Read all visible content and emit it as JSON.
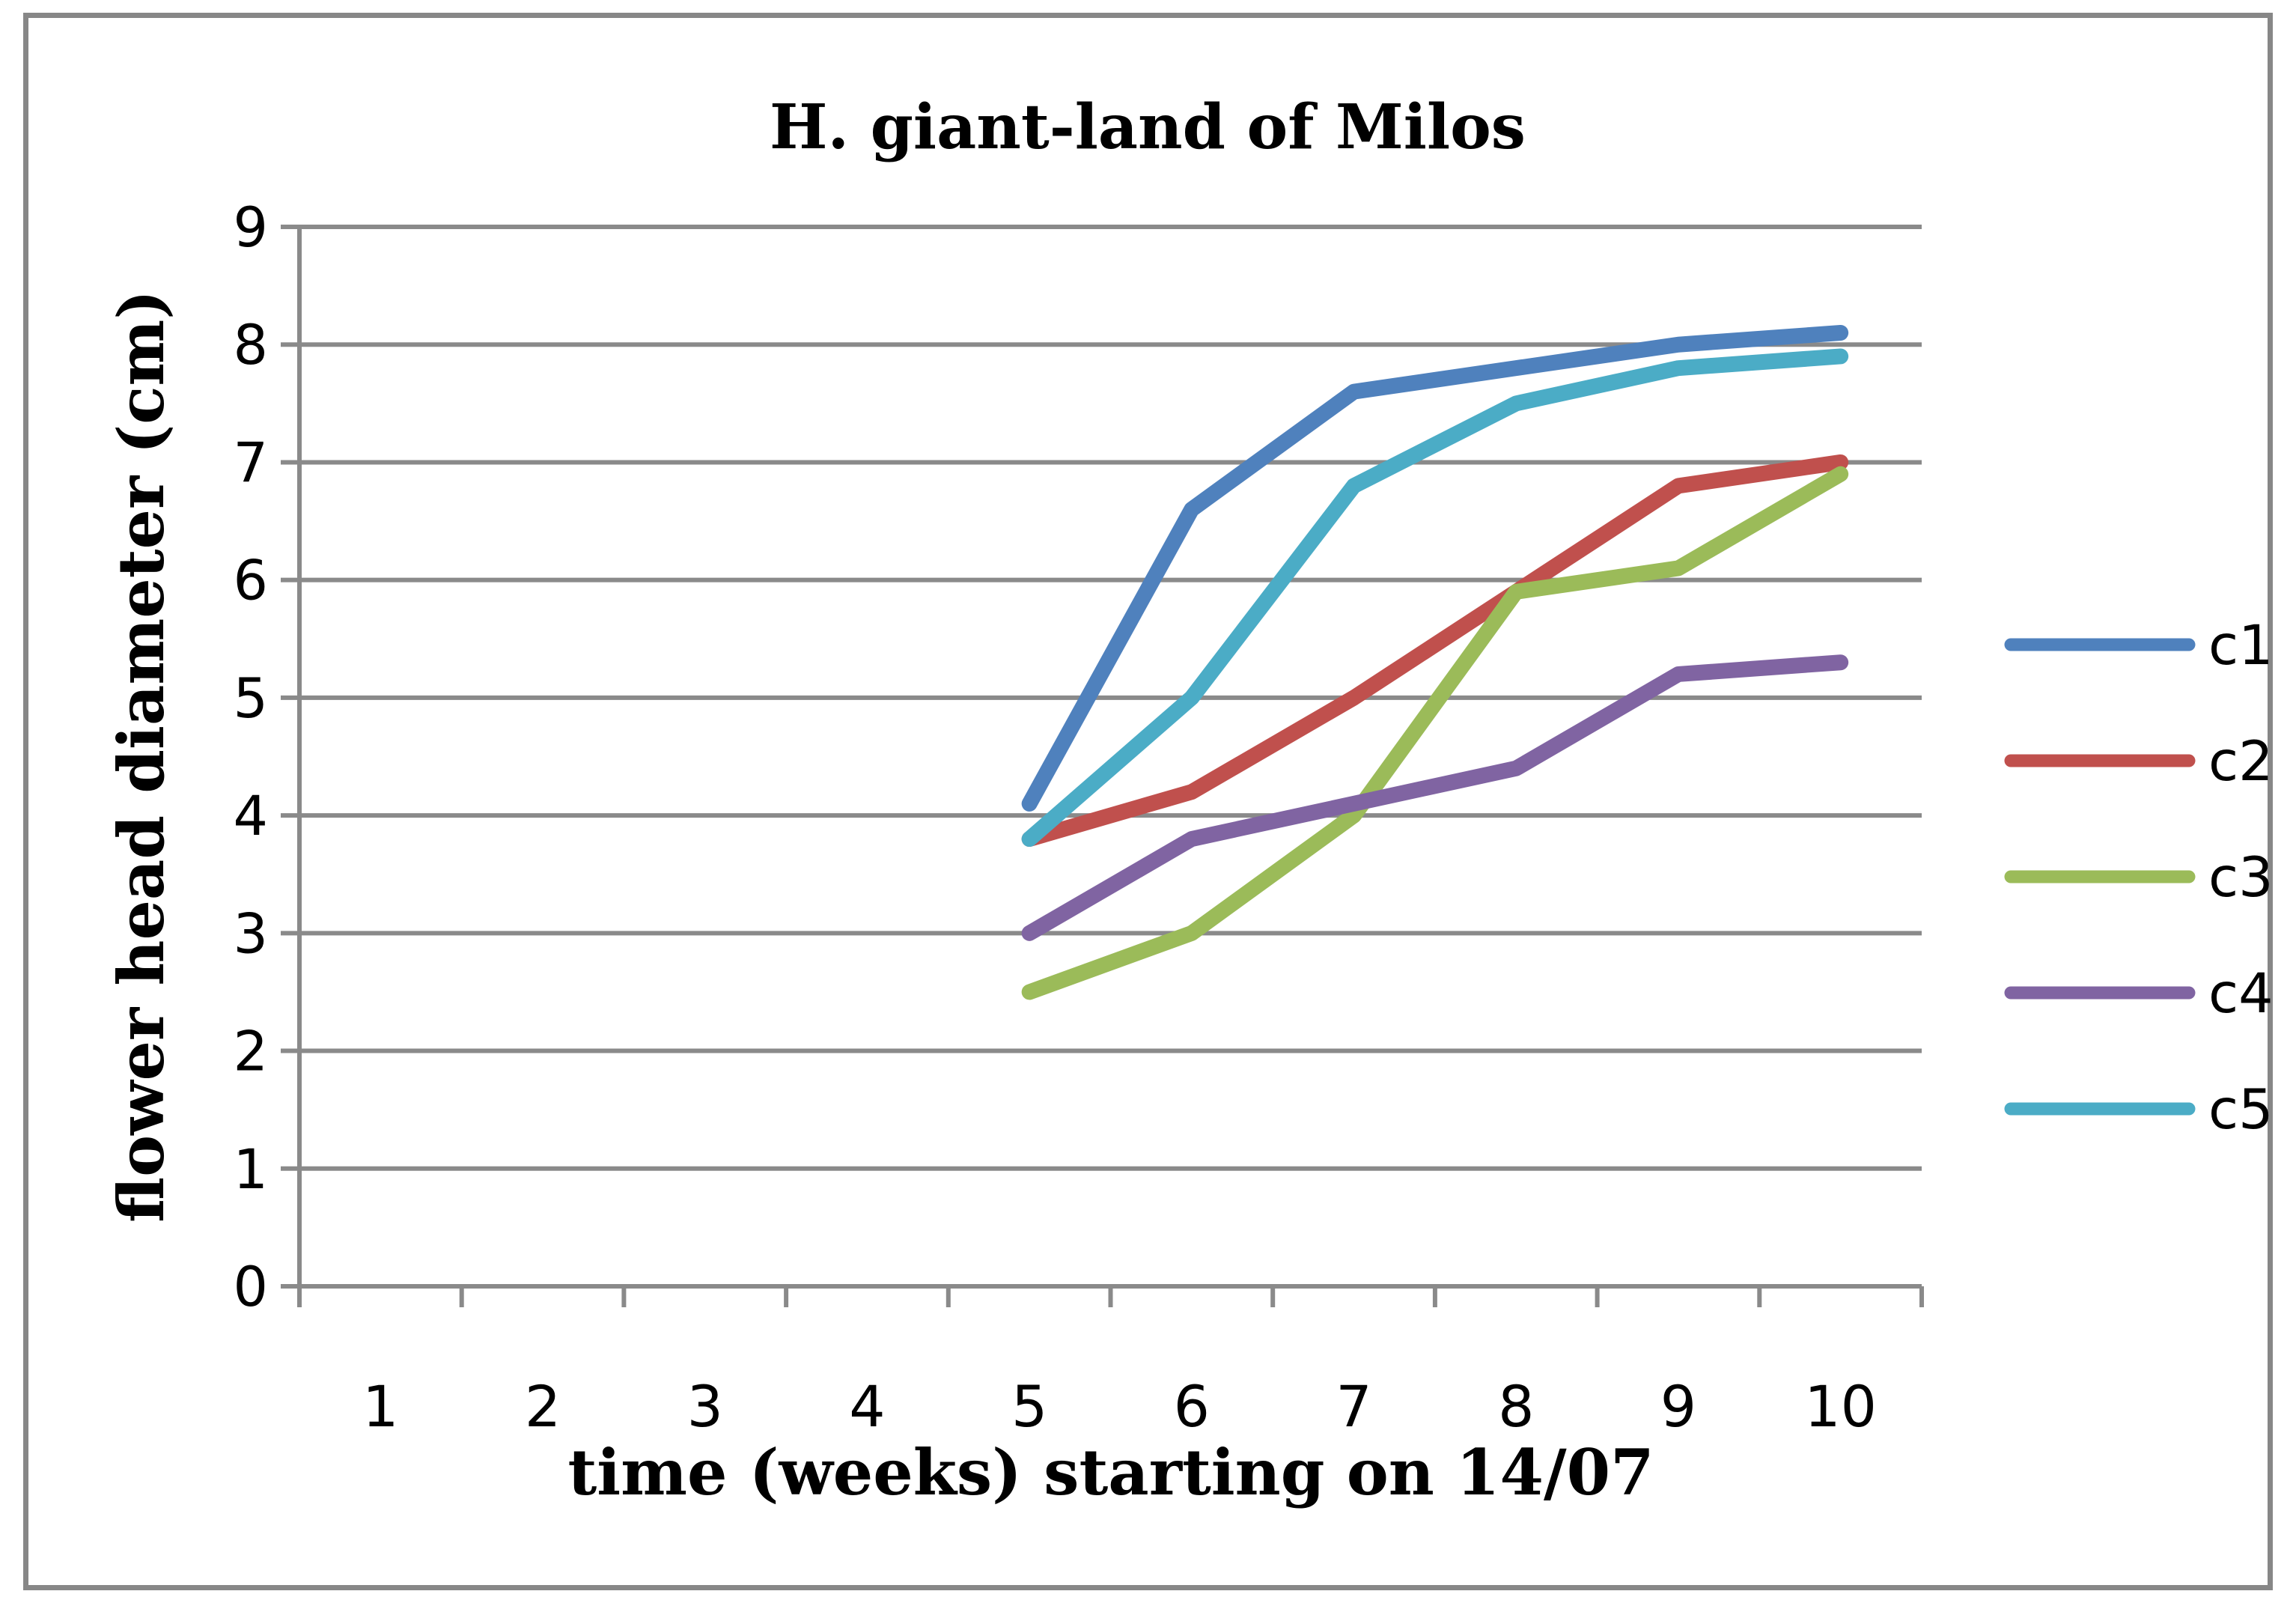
{
  "window": {
    "background_color": "#FFFFFF",
    "border_color": "#878787",
    "grid_color": "#8A8A8A",
    "text_color": "#000000"
  },
  "chart": {
    "title": "H. giant-land of Milos",
    "x_axis": {
      "title": "time (weeks) starting on 14/07",
      "tick_labels": [
        "1",
        "2",
        "3",
        "4",
        "5",
        "6",
        "7",
        "8",
        "9",
        "10"
      ]
    },
    "y_axis": {
      "title": "flower head diameter (cm)",
      "tick_labels": [
        "0",
        "1",
        "2",
        "3",
        "4",
        "5",
        "6",
        "7",
        "8",
        "9"
      ]
    }
  },
  "chart_data": {
    "type": "line",
    "title": "H. giant-land of Milos",
    "xlabel": "time (weeks) starting on 14/07",
    "ylabel": "flower head diameter (cm)",
    "categories": [
      1,
      2,
      3,
      4,
      5,
      6,
      7,
      8,
      9,
      10
    ],
    "x": [
      5,
      6,
      7,
      8,
      9,
      10
    ],
    "series": [
      {
        "name": "c1",
        "color": "#4F81BD",
        "values": [
          4.1,
          6.6,
          7.6,
          7.8,
          8.0,
          8.1
        ]
      },
      {
        "name": "c2",
        "color": "#C0504D",
        "values": [
          3.8,
          4.2,
          5.0,
          5.9,
          6.8,
          7.0
        ]
      },
      {
        "name": "c3",
        "color": "#9BBB59",
        "values": [
          2.5,
          3.0,
          4.0,
          5.9,
          6.1,
          6.9
        ]
      },
      {
        "name": "c4",
        "color": "#8064A2",
        "values": [
          3.0,
          3.8,
          4.1,
          4.4,
          5.2,
          5.3
        ]
      },
      {
        "name": "c5",
        "color": "#4BACC6",
        "values": [
          3.8,
          5.0,
          6.8,
          7.5,
          7.8,
          7.9
        ]
      }
    ],
    "ylim": [
      0,
      9
    ],
    "y_major_step": 1,
    "grid": "horizontal",
    "legend_position": "right",
    "legend_labels": [
      "c1",
      "c2",
      "c3",
      "c4",
      "c5"
    ]
  }
}
